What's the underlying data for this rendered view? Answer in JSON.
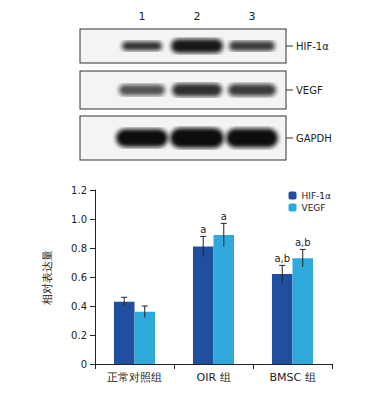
{
  "chart_data": {
    "type": "bar",
    "categories": [
      "正常对照组",
      "OIR 组",
      "BMSC 组"
    ],
    "series": [
      {
        "name": "HIF-1α",
        "color": "#1f4f9e",
        "values": [
          0.43,
          0.81,
          0.62
        ],
        "errors": [
          0.03,
          0.07,
          0.06
        ],
        "annotations": [
          null,
          "a",
          "a,b"
        ]
      },
      {
        "name": "VEGF",
        "color": "#2fa9dc",
        "values": [
          0.36,
          0.89,
          0.73
        ],
        "errors": [
          0.04,
          0.08,
          0.06
        ],
        "annotations": [
          null,
          "a",
          "a,b"
        ]
      }
    ],
    "ylabel": "相对表达量",
    "ylim": [
      0,
      1.2
    ],
    "yticks": [
      0,
      0.2,
      0.4,
      0.6,
      0.8,
      {
        "value": 1,
        "label": "1.0"
      },
      1.2
    ],
    "legend": "upper right",
    "grid": false
  },
  "blot": {
    "lanes": [
      "1",
      "2",
      "3"
    ],
    "bands": [
      "HIF-1α",
      "VEGF",
      "GAPDH"
    ]
  }
}
